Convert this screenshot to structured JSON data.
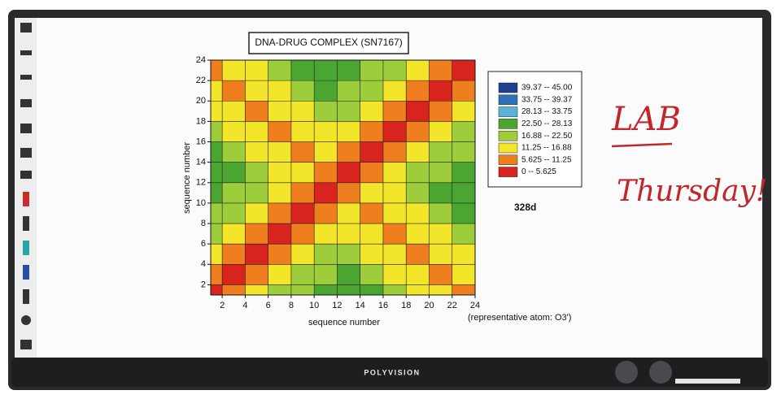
{
  "chart_data": {
    "type": "contour",
    "title": "DNA-DRUG COMPLEX (SN7167)",
    "xlabel": "sequence number",
    "ylabel": "sequence number",
    "annotation": "328d",
    "note": "(representative atom: O3')",
    "x": [
      1,
      3,
      5,
      7,
      9,
      11,
      13,
      15,
      17,
      19,
      21,
      23
    ],
    "y": [
      1,
      3,
      5,
      7,
      9,
      11,
      13,
      15,
      17,
      19,
      21,
      23
    ],
    "z": [
      [
        2,
        7,
        12,
        17,
        22,
        27,
        28,
        24,
        20,
        16,
        12,
        8
      ],
      [
        7,
        2,
        7,
        12,
        17,
        22,
        24,
        20,
        16,
        12,
        8,
        12
      ],
      [
        12,
        7,
        2,
        7,
        12,
        17,
        20,
        16,
        12,
        8,
        12,
        16
      ],
      [
        17,
        12,
        7,
        2,
        7,
        12,
        16,
        12,
        8,
        12,
        16,
        20
      ],
      [
        22,
        17,
        12,
        7,
        2,
        7,
        12,
        8,
        12,
        16,
        20,
        24
      ],
      [
        27,
        22,
        17,
        12,
        7,
        2,
        7,
        12,
        16,
        20,
        24,
        28
      ],
      [
        28,
        24,
        20,
        16,
        12,
        7,
        2,
        7,
        12,
        17,
        22,
        27
      ],
      [
        24,
        20,
        16,
        12,
        8,
        12,
        7,
        2,
        7,
        12,
        17,
        22
      ],
      [
        20,
        16,
        12,
        8,
        12,
        16,
        12,
        7,
        2,
        7,
        12,
        17
      ],
      [
        16,
        12,
        8,
        12,
        16,
        20,
        17,
        12,
        7,
        2,
        7,
        12
      ],
      [
        12,
        8,
        12,
        16,
        20,
        24,
        22,
        17,
        12,
        7,
        2,
        7
      ],
      [
        8,
        12,
        16,
        20,
        24,
        28,
        27,
        22,
        17,
        12,
        7,
        2
      ]
    ],
    "xlim": [
      1,
      24
    ],
    "ylim": [
      1,
      24
    ],
    "xticks": [
      2,
      4,
      6,
      8,
      10,
      12,
      14,
      16,
      18,
      20,
      22,
      24
    ],
    "yticks": [
      2,
      4,
      6,
      8,
      10,
      12,
      14,
      16,
      18,
      20,
      22,
      24
    ],
    "grid": true,
    "levels": [
      0,
      5.625,
      11.25,
      16.88,
      22.5,
      28.13,
      33.75,
      39.37,
      45
    ],
    "legend": [
      {
        "label": "39.37  --  45.00",
        "color": "#1c3f8e"
      },
      {
        "label": "33.75  --  39.37",
        "color": "#2f6fb8"
      },
      {
        "label": "28.13  --  33.75",
        "color": "#5db2d8"
      },
      {
        "label": "22.50  --  28.13",
        "color": "#4aa631"
      },
      {
        "label": "16.88  --  22.50",
        "color": "#9dcd3b"
      },
      {
        "label": "11.25  --  16.88",
        "color": "#f3e52a"
      },
      {
        "label": "5.625  --  11.25",
        "color": "#ef7f1e"
      },
      {
        "label": "0  --  5.625",
        "color": "#d9231f"
      }
    ]
  },
  "whiteboard": {
    "handwriting": [
      "LAB",
      "Thursday!"
    ],
    "brand": "POLYVISION"
  }
}
